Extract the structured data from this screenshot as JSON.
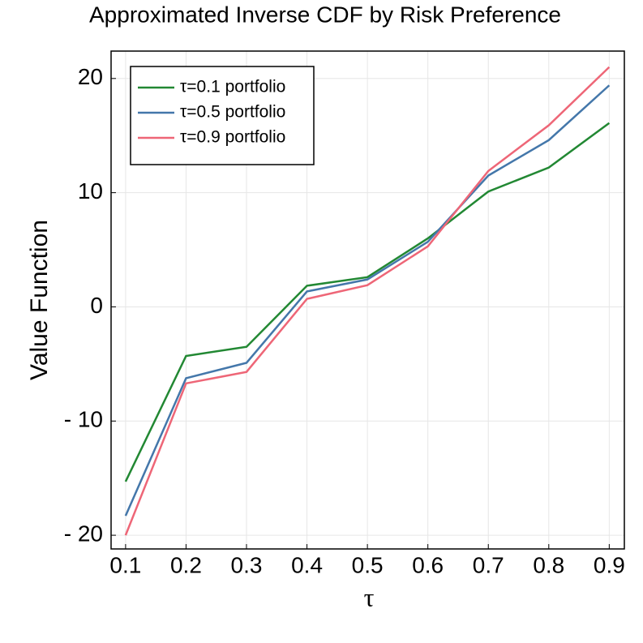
{
  "chart_data": {
    "type": "line",
    "title": "Approximated Inverse CDF by Risk Preference",
    "x_label": "τ",
    "y_label": "Value Function",
    "x": [
      0.1,
      0.2,
      0.3,
      0.4,
      0.5,
      0.6,
      0.7,
      0.8,
      0.9
    ],
    "series": [
      {
        "name": "τ=0.1 portfolio",
        "color": "#228833",
        "values": [
          -15.3,
          -4.3,
          -3.5,
          1.85,
          2.6,
          6.0,
          10.1,
          12.2,
          16.1
        ]
      },
      {
        "name": "τ=0.5 portfolio",
        "color": "#4477aa",
        "values": [
          -18.3,
          -6.25,
          -4.9,
          1.35,
          2.4,
          5.7,
          11.5,
          14.6,
          19.4
        ]
      },
      {
        "name": "τ=0.9 portfolio",
        "color": "#ee6677",
        "values": [
          -20.0,
          -6.7,
          -5.7,
          0.7,
          1.9,
          5.3,
          11.9,
          15.9,
          21.0
        ]
      }
    ],
    "xlim": [
      0.076,
      0.925
    ],
    "xticks": [
      0.1,
      0.2,
      0.3,
      0.4,
      0.5,
      0.6,
      0.7,
      0.8,
      0.9
    ],
    "ylim": [
      -21.2,
      22.4
    ],
    "yticks": [
      {
        "value": -20,
        "label": "- 20"
      },
      {
        "value": -10,
        "label": "- 10"
      },
      0,
      10,
      20
    ],
    "grid": true,
    "legend": "top-left"
  }
}
